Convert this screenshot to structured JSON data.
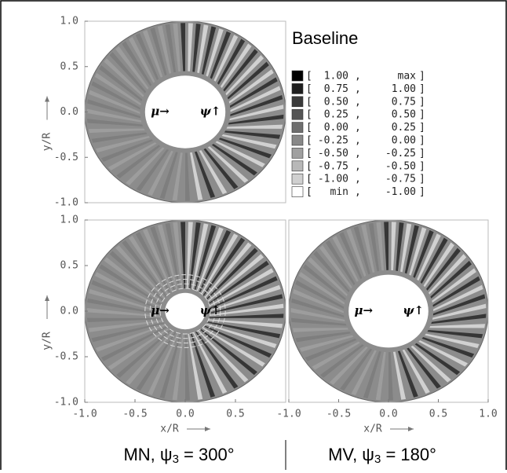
{
  "chart_data": [
    {
      "type": "contour",
      "title": "Baseline",
      "ylabel": "y/R",
      "xlim": [
        -1,
        1
      ],
      "ylim": [
        -1,
        1
      ],
      "yticks": [
        {
          "value": 1,
          "label": "1.0"
        },
        {
          "value": 0.5,
          "label": "0.5"
        },
        {
          "value": 0,
          "label": "0.0"
        },
        {
          "value": -0.5,
          "label": "-0.5"
        },
        {
          "value": -1,
          "label": "-1.0"
        }
      ],
      "annotations": [
        "μ→",
        "ψ↑"
      ],
      "legend": [
        {
          "range": [
            "1.00",
            "max"
          ],
          "color": "#000000"
        },
        {
          "range": [
            "0.75",
            "1.00"
          ],
          "color": "#1e1e1e"
        },
        {
          "range": [
            "0.50",
            "0.75"
          ],
          "color": "#3a3a3a"
        },
        {
          "range": [
            "0.25",
            "0.50"
          ],
          "color": "#555555"
        },
        {
          "range": [
            "0.00",
            "0.25"
          ],
          "color": "#6e6e6e"
        },
        {
          "range": [
            "-0.25",
            "0.00"
          ],
          "color": "#888888"
        },
        {
          "range": [
            "-0.50",
            "-0.25"
          ],
          "color": "#a0a0a0"
        },
        {
          "range": [
            "-0.75",
            "-0.50"
          ],
          "color": "#b8b8b8"
        },
        {
          "range": [
            "-1.00",
            "-0.75"
          ],
          "color": "#d0d0d0"
        },
        {
          "range": [
            "min",
            "-1.00"
          ],
          "color": "#ffffff"
        }
      ]
    },
    {
      "type": "contour",
      "ylabel": "y/R",
      "xlabel": "x/R",
      "xlim": [
        -1,
        1
      ],
      "ylim": [
        -1,
        1
      ],
      "xticks": [
        {
          "value": -1,
          "label": "-1.0"
        },
        {
          "value": -0.5,
          "label": "-0.5"
        },
        {
          "value": 0,
          "label": "0.0"
        },
        {
          "value": 0.5,
          "label": "0.5"
        }
      ],
      "yticks": [
        {
          "value": 1,
          "label": "1.0"
        },
        {
          "value": 0.5,
          "label": "0.5"
        },
        {
          "value": 0,
          "label": "0.0"
        },
        {
          "value": -0.5,
          "label": "-0.5"
        },
        {
          "value": -1,
          "label": "-1.0"
        }
      ],
      "annotations": [
        "μ→",
        "ψ↑"
      ],
      "caption": {
        "prefix": "MN, ψ",
        "sub": "3",
        "suffix": " = 300°"
      }
    },
    {
      "type": "contour",
      "xlabel": "x/R",
      "xlim": [
        -1,
        1
      ],
      "ylim": [
        -1,
        1
      ],
      "xticks": [
        {
          "value": -1,
          "label": "-1.0"
        },
        {
          "value": -0.5,
          "label": "-0.5"
        },
        {
          "value": 0,
          "label": "0.0"
        },
        {
          "value": 0.5,
          "label": "0.5"
        },
        {
          "value": 1,
          "label": "1.0"
        }
      ],
      "annotations": [
        "μ→",
        "ψ↑"
      ],
      "caption": {
        "prefix": "MV, ψ",
        "sub": "3",
        "suffix": " = 180°"
      }
    }
  ]
}
